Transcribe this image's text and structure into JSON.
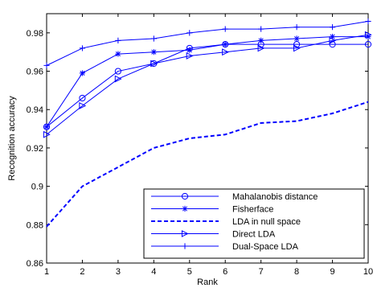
{
  "chart_data": {
    "type": "line",
    "title": "",
    "xlabel": "Rank",
    "ylabel": "Recognition accuracy",
    "xlim": [
      1,
      10
    ],
    "ylim": [
      0.86,
      0.99
    ],
    "x_ticks": [
      "1",
      "2",
      "3",
      "4",
      "5",
      "6",
      "7",
      "8",
      "9",
      "10"
    ],
    "y_ticks": [
      "0.86",
      "0.88",
      "0.9",
      "0.92",
      "0.94",
      "0.96",
      "0.98"
    ],
    "y_tick_values": [
      0.86,
      0.88,
      0.9,
      0.92,
      0.94,
      0.96,
      0.98
    ],
    "grid": false,
    "legend_position": "bottom-right",
    "x": [
      1,
      2,
      3,
      4,
      5,
      6,
      7,
      8,
      9,
      10
    ],
    "series": [
      {
        "name": "Mahalanobis distance",
        "marker": "circle",
        "line_style": "solid",
        "values": [
          0.931,
          0.946,
          0.96,
          0.964,
          0.972,
          0.974,
          0.974,
          0.974,
          0.974,
          0.974
        ]
      },
      {
        "name": "Fisherface",
        "marker": "asterisk",
        "line_style": "solid",
        "values": [
          0.931,
          0.959,
          0.969,
          0.97,
          0.971,
          0.974,
          0.976,
          0.977,
          0.978,
          0.978
        ]
      },
      {
        "name": "LDA in null space",
        "marker": "none",
        "line_style": "dashed",
        "values": [
          0.879,
          0.9,
          0.91,
          0.92,
          0.925,
          0.927,
          0.933,
          0.934,
          0.938,
          0.944
        ]
      },
      {
        "name": "Direct LDA",
        "marker": "triangle-right",
        "line_style": "solid",
        "values": [
          0.927,
          0.942,
          0.956,
          0.964,
          0.968,
          0.97,
          0.972,
          0.972,
          0.976,
          0.979
        ]
      },
      {
        "name": "Dual-Space LDA",
        "marker": "plus",
        "line_style": "solid",
        "values": [
          0.963,
          0.972,
          0.976,
          0.977,
          0.98,
          0.982,
          0.982,
          0.983,
          0.983,
          0.986
        ]
      }
    ],
    "colors": {
      "series": "#0000ff",
      "axes": "#000000",
      "background": "#ffffff"
    }
  }
}
